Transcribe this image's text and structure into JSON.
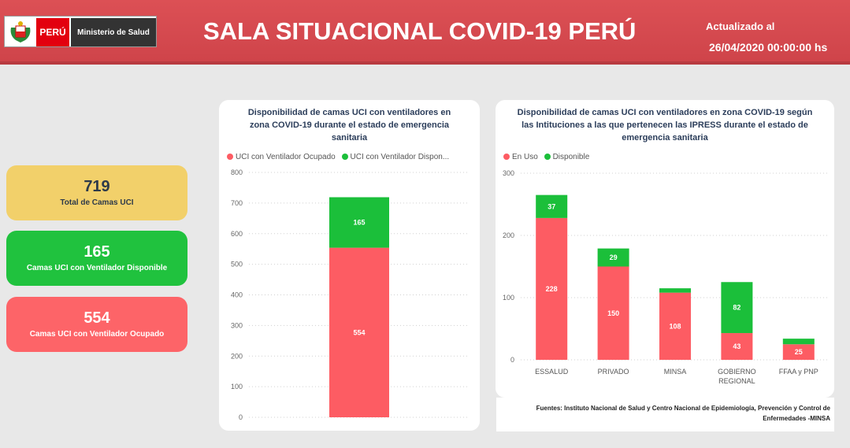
{
  "header": {
    "flag_text": "PERÚ",
    "ministry": "Ministerio de Salud",
    "title": "SALA SITUACIONAL COVID-19 PERÚ",
    "updated_label": "Actualizado al",
    "updated_value": "26/04/2020 00:00:00 hs"
  },
  "kpis": {
    "total": {
      "value": "719",
      "label": "Total de Camas UCI"
    },
    "disponible": {
      "value": "165",
      "label": "Camas UCI con Ventilador Disponible"
    },
    "ocupado": {
      "value": "554",
      "label": "Camas UCI con Ventilador Ocupado"
    }
  },
  "colors": {
    "ocupado": "#fd5c63",
    "disponible": "#1bbf3a",
    "header": "#d24a4f"
  },
  "chart1": {
    "title_lines": [
      "Disponibilidad de camas UCI con ventiladores en",
      "zona COVID-19 durante el estado de emergencia",
      "sanitaria"
    ],
    "legend": [
      "UCI con Ventilador Ocupado",
      "UCI con Ventilador Dispon..."
    ]
  },
  "chart2": {
    "title_lines": [
      "Disponibilidad de camas UCI con ventiladores en zona COVID-19 según",
      "las Intituciones a las que pertenecen las IPRESS durante el estado de",
      "emergencia sanitaria"
    ],
    "legend": [
      "En Uso",
      "Disponible"
    ]
  },
  "chart_data": [
    {
      "type": "bar",
      "stacked": true,
      "categories": [
        ""
      ],
      "series": [
        {
          "name": "UCI con Ventilador Ocupado",
          "values": [
            554
          ],
          "color": "#fd5c63"
        },
        {
          "name": "UCI con Ventilador Disponible",
          "values": [
            165
          ],
          "color": "#1bbf3a"
        }
      ],
      "ylim": [
        0,
        800
      ],
      "yticks": [
        0,
        100,
        200,
        300,
        400,
        500,
        600,
        700,
        800
      ],
      "grid": true,
      "legend_position": "top-left"
    },
    {
      "type": "bar",
      "stacked": true,
      "categories": [
        "ESSALUD",
        "PRIVADO",
        "MINSA",
        "GOBIERNO REGIONAL",
        "FFAA y PNP"
      ],
      "category_lines": [
        [
          "ESSALUD"
        ],
        [
          "PRIVADO"
        ],
        [
          "MINSA"
        ],
        [
          "GOBIERNO",
          "REGIONAL"
        ],
        [
          "FFAA y PNP"
        ]
      ],
      "series": [
        {
          "name": "En Uso",
          "values": [
            228,
            150,
            108,
            43,
            25
          ],
          "color": "#fd5c63",
          "labels": [
            "228",
            "150",
            "108",
            "43",
            "25"
          ]
        },
        {
          "name": "Disponible",
          "values": [
            37,
            29,
            7,
            82,
            9
          ],
          "color": "#1bbf3a",
          "labels": [
            "37",
            "29",
            "",
            "82",
            ""
          ]
        }
      ],
      "ylim": [
        0,
        300
      ],
      "yticks": [
        0,
        100,
        200,
        300
      ],
      "grid": true,
      "legend_position": "top-left"
    }
  ],
  "sources": {
    "line1": "Fuentes: Instituto Nacional de Salud y Centro Nacional de Epidemiología, Prevención y Control de",
    "line2": "Enfermedades -MINSA"
  }
}
